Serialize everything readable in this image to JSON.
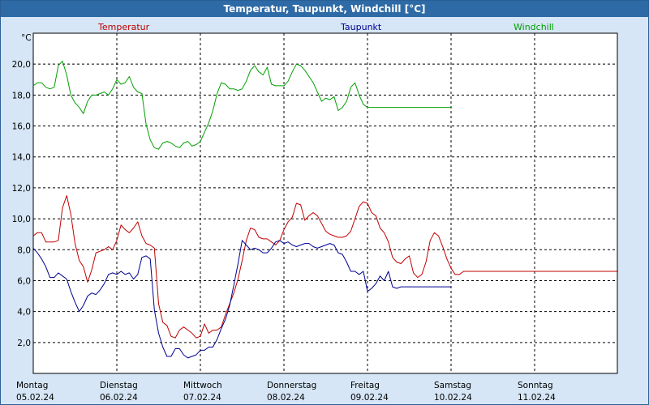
{
  "window": {
    "title": "Temperatur, Taupunkt, Windchill [°C]"
  },
  "chart_data": {
    "type": "line",
    "title": "Temperatur, Taupunkt, Windchill [°C]",
    "ylabel": "°C",
    "xlabel": "",
    "ylim": [
      0,
      22
    ],
    "xlim": [
      0,
      7
    ],
    "grid": true,
    "y_ticks": [
      "2,0",
      "4,0",
      "6,0",
      "8,0",
      "10,0",
      "12,0",
      "14,0",
      "16,0",
      "18,0",
      "20,0"
    ],
    "y_tick_values": [
      2,
      4,
      6,
      8,
      10,
      12,
      14,
      16,
      18,
      20
    ],
    "x_ticks": [
      {
        "day": "Montag",
        "date": "05.02.24"
      },
      {
        "day": "Dienstag",
        "date": "06.02.24"
      },
      {
        "day": "Mittwoch",
        "date": "07.02.24"
      },
      {
        "day": "Donnerstag",
        "date": "08.02.24"
      },
      {
        "day": "Freitag",
        "date": "09.02.24"
      },
      {
        "day": "Samstag",
        "date": "10.02.24"
      },
      {
        "day": "Sonntag",
        "date": "11.02.24"
      }
    ],
    "legend": [
      {
        "label": "Temperatur",
        "color": "#c00000"
      },
      {
        "label": "Taupunkt",
        "color": "#000090"
      },
      {
        "label": "Windchill",
        "color": "#00a000"
      }
    ],
    "series": [
      {
        "name": "Temperatur",
        "color": "#c00000",
        "x": [
          0.0,
          0.05,
          0.1,
          0.15,
          0.2,
          0.25,
          0.3,
          0.35,
          0.4,
          0.45,
          0.5,
          0.55,
          0.6,
          0.65,
          0.7,
          0.75,
          0.8,
          0.85,
          0.9,
          0.95,
          1.0,
          1.05,
          1.1,
          1.15,
          1.2,
          1.25,
          1.3,
          1.35,
          1.4,
          1.45,
          1.5,
          1.55,
          1.6,
          1.65,
          1.7,
          1.75,
          1.8,
          1.85,
          1.9,
          1.95,
          2.0,
          2.05,
          2.1,
          2.15,
          2.2,
          2.25,
          2.3,
          2.35,
          2.4,
          2.45,
          2.5,
          2.55,
          2.6,
          2.65,
          2.7,
          2.75,
          2.8,
          2.85,
          2.9,
          2.95,
          3.0,
          3.05,
          3.1,
          3.15,
          3.2,
          3.25,
          3.3,
          3.35,
          3.4,
          3.45,
          3.5,
          3.55,
          3.6,
          3.65,
          3.7,
          3.75,
          3.8,
          3.85,
          3.9,
          3.95,
          4.0,
          4.05,
          4.1,
          4.15,
          4.2,
          4.25,
          4.3,
          4.35,
          4.4,
          4.45,
          4.5,
          4.55,
          4.6,
          4.65,
          4.7,
          4.75,
          4.8,
          4.85,
          4.9,
          4.95,
          5.0,
          5.05,
          5.1,
          5.15,
          5.2,
          5.25,
          5.3,
          5.35,
          5.4,
          5.45,
          5.5,
          5.55,
          5.6,
          5.65,
          5.7,
          5.75,
          5.8,
          5.85,
          5.9,
          5.95,
          6.0,
          6.05,
          6.1,
          6.15,
          6.2,
          6.25,
          6.3,
          6.35,
          6.4,
          6.45,
          6.5,
          6.55,
          6.6,
          6.65,
          6.7,
          6.75,
          6.8,
          6.85,
          6.9,
          6.95,
          7.0
        ],
        "y": [
          8.9,
          9.1,
          9.1,
          8.5,
          8.5,
          8.5,
          8.6,
          10.7,
          11.5,
          10.3,
          8.4,
          7.3,
          6.9,
          5.9,
          6.7,
          7.8,
          7.9,
          8.0,
          8.2,
          8.0,
          8.6,
          9.6,
          9.3,
          9.1,
          9.4,
          9.8,
          8.9,
          8.4,
          8.3,
          8.1,
          4.5,
          3.3,
          3.1,
          2.4,
          2.3,
          2.8,
          3.0,
          2.8,
          2.6,
          2.3,
          2.4,
          3.2,
          2.6,
          2.8,
          2.8,
          3.0,
          3.8,
          4.5,
          5.2,
          6.1,
          7.3,
          8.6,
          9.4,
          9.3,
          8.8,
          8.7,
          8.7,
          8.5,
          8.3,
          8.6,
          9.3,
          9.8,
          10.1,
          11.0,
          10.9,
          9.9,
          10.2,
          10.4,
          10.2,
          9.7,
          9.2,
          9.0,
          8.9,
          8.8,
          8.8,
          8.9,
          9.2,
          10.0,
          10.8,
          11.1,
          11.0,
          10.4,
          10.2,
          9.4,
          9.1,
          8.5,
          7.5,
          7.2,
          7.1,
          7.4,
          7.6,
          6.5,
          6.2,
          6.4,
          7.2,
          8.6,
          9.1,
          8.9,
          8.2,
          7.4,
          6.8,
          6.4,
          6.4,
          6.6,
          6.6,
          6.6,
          6.6,
          6.6,
          6.6,
          6.6,
          6.6,
          6.6,
          6.6,
          6.6,
          6.6,
          6.6,
          6.6,
          6.6,
          6.6,
          6.6,
          6.6,
          6.6,
          6.6,
          6.6,
          6.6,
          6.6,
          6.6,
          6.6,
          6.6,
          6.6,
          6.6,
          6.6,
          6.6,
          6.6,
          6.6,
          6.6,
          6.6,
          6.6,
          6.6,
          6.6,
          6.6
        ]
      },
      {
        "name": "Taupunkt",
        "color": "#000090",
        "x": [
          0.0,
          0.05,
          0.1,
          0.15,
          0.2,
          0.25,
          0.3,
          0.35,
          0.4,
          0.45,
          0.5,
          0.55,
          0.6,
          0.65,
          0.7,
          0.75,
          0.8,
          0.85,
          0.9,
          0.95,
          1.0,
          1.05,
          1.1,
          1.15,
          1.2,
          1.25,
          1.3,
          1.35,
          1.4,
          1.45,
          1.5,
          1.55,
          1.6,
          1.65,
          1.7,
          1.75,
          1.8,
          1.85,
          1.9,
          1.95,
          2.0,
          2.05,
          2.1,
          2.15,
          2.2,
          2.25,
          2.3,
          2.35,
          2.4,
          2.45,
          2.5,
          2.55,
          2.6,
          2.65,
          2.7,
          2.75,
          2.8,
          2.85,
          2.9,
          2.95,
          3.0,
          3.05,
          3.1,
          3.15,
          3.2,
          3.25,
          3.3,
          3.35,
          3.4,
          3.45,
          3.5,
          3.55,
          3.6,
          3.65,
          3.7,
          3.75,
          3.8,
          3.85,
          3.9,
          3.95,
          4.0,
          4.05,
          4.1,
          4.15,
          4.2,
          4.25,
          4.3,
          4.35,
          4.4,
          4.45,
          4.5,
          4.55,
          4.6,
          4.65,
          4.7,
          4.75,
          4.8,
          4.85,
          4.9,
          4.95,
          5.0
        ],
        "y": [
          8.1,
          7.8,
          7.4,
          6.9,
          6.2,
          6.2,
          6.5,
          6.3,
          6.1,
          5.3,
          4.6,
          4.0,
          4.4,
          5.0,
          5.2,
          5.1,
          5.4,
          5.8,
          6.4,
          6.5,
          6.4,
          6.6,
          6.4,
          6.5,
          6.1,
          6.4,
          7.5,
          7.6,
          7.4,
          4.1,
          2.6,
          1.7,
          1.1,
          1.1,
          1.6,
          1.6,
          1.2,
          1.0,
          1.1,
          1.2,
          1.5,
          1.5,
          1.7,
          1.7,
          2.2,
          2.9,
          3.5,
          4.4,
          5.7,
          7.1,
          8.6,
          8.3,
          8.0,
          8.1,
          8.0,
          7.8,
          7.8,
          8.1,
          8.5,
          8.6,
          8.4,
          8.5,
          8.3,
          8.2,
          8.3,
          8.4,
          8.4,
          8.2,
          8.1,
          8.2,
          8.3,
          8.4,
          8.3,
          7.8,
          7.7,
          7.2,
          6.6,
          6.6,
          6.4,
          6.6,
          5.3,
          5.5,
          5.8,
          6.3,
          6.0,
          6.6,
          5.6,
          5.5,
          5.6,
          5.6,
          5.6,
          5.6,
          5.6,
          5.6,
          5.6,
          5.6,
          5.6,
          5.6,
          5.6,
          5.6,
          5.6
        ]
      },
      {
        "name": "Windchill",
        "color": "#00a000",
        "x": [
          0.0,
          0.05,
          0.1,
          0.15,
          0.2,
          0.25,
          0.3,
          0.35,
          0.4,
          0.45,
          0.5,
          0.55,
          0.6,
          0.65,
          0.7,
          0.75,
          0.8,
          0.85,
          0.9,
          0.95,
          1.0,
          1.05,
          1.1,
          1.15,
          1.2,
          1.25,
          1.3,
          1.35,
          1.4,
          1.45,
          1.5,
          1.55,
          1.6,
          1.65,
          1.7,
          1.75,
          1.8,
          1.85,
          1.9,
          1.95,
          2.0,
          2.05,
          2.1,
          2.15,
          2.2,
          2.25,
          2.3,
          2.35,
          2.4,
          2.45,
          2.5,
          2.55,
          2.6,
          2.65,
          2.7,
          2.75,
          2.8,
          2.85,
          2.9,
          2.95,
          3.0,
          3.05,
          3.1,
          3.15,
          3.2,
          3.25,
          3.3,
          3.35,
          3.4,
          3.45,
          3.5,
          3.55,
          3.6,
          3.65,
          3.7,
          3.75,
          3.8,
          3.85,
          3.9,
          3.95,
          4.0,
          4.05,
          4.1,
          4.15,
          4.2,
          4.25,
          4.3,
          4.35,
          4.4,
          4.45,
          4.5,
          4.55,
          4.6,
          4.65,
          4.7,
          4.75,
          4.8,
          4.85,
          4.9,
          4.95,
          5.0
        ],
        "y": [
          18.6,
          18.8,
          18.8,
          18.5,
          18.4,
          18.5,
          19.9,
          20.2,
          19.3,
          18.0,
          17.5,
          17.2,
          16.8,
          17.6,
          18.0,
          18.0,
          18.1,
          18.2,
          18.0,
          18.4,
          19.0,
          18.7,
          18.8,
          19.2,
          18.5,
          18.2,
          18.1,
          16.1,
          15.1,
          14.6,
          14.5,
          14.9,
          15.0,
          14.9,
          14.7,
          14.6,
          14.9,
          15.0,
          14.7,
          14.8,
          15.0,
          15.6,
          16.2,
          17.0,
          18.1,
          18.8,
          18.7,
          18.4,
          18.4,
          18.3,
          18.4,
          18.9,
          19.6,
          19.9,
          19.5,
          19.3,
          19.8,
          18.7,
          18.6,
          18.6,
          18.6,
          18.9,
          19.5,
          20.0,
          19.9,
          19.6,
          19.2,
          18.8,
          18.2,
          17.6,
          17.8,
          17.7,
          17.9,
          17.0,
          17.2,
          17.6,
          18.5,
          18.8,
          18.0,
          17.4,
          17.2,
          17.2,
          17.2,
          17.2,
          17.2,
          17.2,
          17.2,
          17.2,
          17.2,
          17.2,
          17.2,
          17.2,
          17.2,
          17.2,
          17.2,
          17.2,
          17.2,
          17.2,
          17.2,
          17.2,
          17.2
        ]
      }
    ]
  }
}
